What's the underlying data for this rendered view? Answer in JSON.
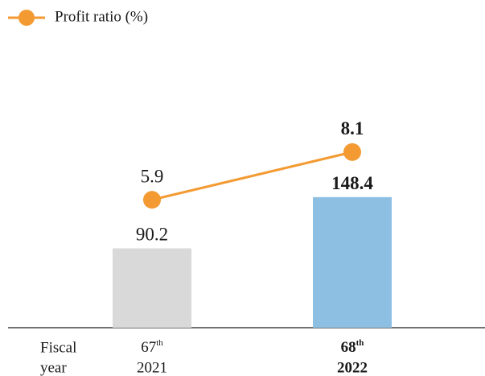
{
  "chart_data": {
    "type": "combo",
    "categories": [
      {
        "ordinal": "67",
        "suffix": "th",
        "year": "2021"
      },
      {
        "ordinal": "68",
        "suffix": "th",
        "year": "2022"
      }
    ],
    "x_label": [
      "Fiscal",
      "year"
    ],
    "bold": [
      false,
      true
    ],
    "series": [
      {
        "type": "bar",
        "colors": [
          "#d9d9d9",
          "#8dbfe3"
        ],
        "values": [
          90.2,
          148.4
        ]
      },
      {
        "name": "Profit ratio (%)",
        "type": "line",
        "axis": "y2",
        "color": "#f39a32",
        "values": [
          5.9,
          8.1
        ]
      }
    ],
    "ylim": [
      0,
      345
    ],
    "y2lim": [
      0,
      14
    ],
    "legend": "top-left"
  }
}
